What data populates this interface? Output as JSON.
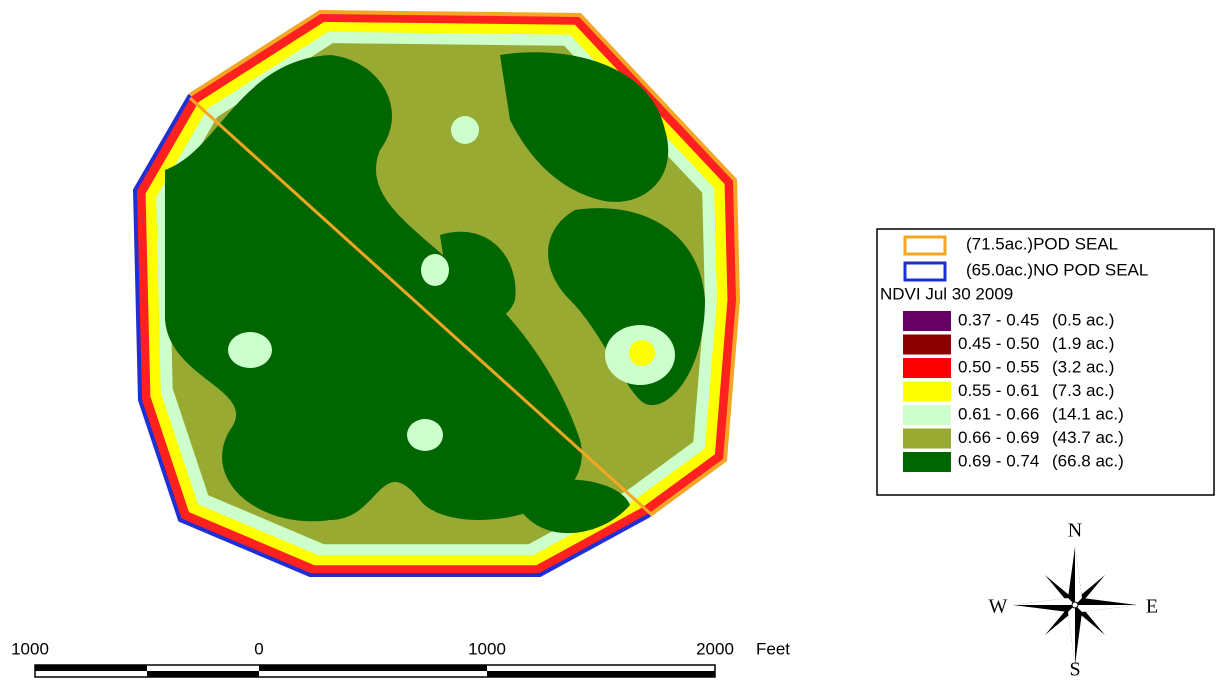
{
  "legend": {
    "boundaries": [
      {
        "label": "(71.5ac.)POD SEAL",
        "color": "#f5a623"
      },
      {
        "label": "(65.0ac.)NO POD SEAL",
        "color": "#1f2fd6"
      }
    ],
    "title": "NDVI Jul 30 2009",
    "classes": [
      {
        "range": "0.37 - 0.45",
        "area": "(0.5 ac.)",
        "color": "#660066"
      },
      {
        "range": "0.45 - 0.50",
        "area": "(1.9 ac.)",
        "color": "#8b0000"
      },
      {
        "range": "0.50 - 0.55",
        "area": "(3.2 ac.)",
        "color": "#ff0000"
      },
      {
        "range": "0.55 - 0.61",
        "area": "(7.3 ac.)",
        "color": "#ffff00"
      },
      {
        "range": "0.61 - 0.66",
        "area": "(14.1 ac.)",
        "color": "#ccffcc"
      },
      {
        "range": "0.66 - 0.69",
        "area": "(43.7 ac.)",
        "color": "#99aa33"
      },
      {
        "range": "0.69 - 0.74",
        "area": "(66.8 ac.)",
        "color": "#006600"
      }
    ]
  },
  "scale_bar": {
    "labels": [
      "1000",
      "0",
      "1000",
      "2000"
    ],
    "unit": "Feet"
  },
  "compass": {
    "north": "N",
    "east": "E",
    "south": "S",
    "west": "W"
  }
}
